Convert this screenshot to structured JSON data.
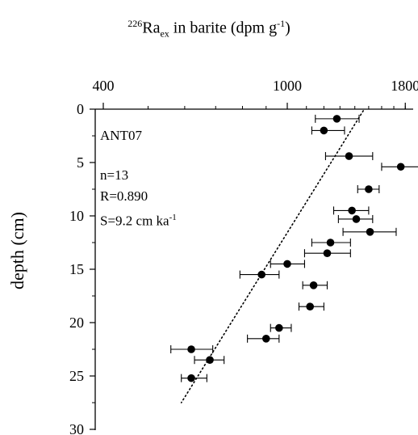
{
  "title": {
    "iso": "226",
    "symbol": "Ra",
    "sub": "ex",
    "rest": " in barite (dpm g",
    "exp": "-1",
    "close": ")"
  },
  "annotations": {
    "site": "ANT07",
    "n": "n=13",
    "r": "R=0.890",
    "s_main": "S=9.2 cm ka",
    "s_exp": "-1"
  },
  "chart_data": {
    "type": "scatter",
    "xlabel": "226Ra_ex in barite (dpm g-1)",
    "ylabel": "depth (cm)",
    "x_scale": "log",
    "xlim": [
      400,
      1900
    ],
    "ylim": [
      0,
      30
    ],
    "y_inverted": true,
    "x_ticks": [
      400,
      1000,
      1800
    ],
    "y_ticks": [
      0,
      5,
      10,
      15,
      20,
      25,
      30
    ],
    "points": [
      {
        "depth": 0.9,
        "value": 1280,
        "xerr_low": 1150,
        "xerr_high": 1430
      },
      {
        "depth": 2.0,
        "value": 1200,
        "xerr_low": 1130,
        "xerr_high": 1330
      },
      {
        "depth": 4.4,
        "value": 1360,
        "xerr_low": 1210,
        "xerr_high": 1530
      },
      {
        "depth": 5.4,
        "value": 1760,
        "xerr_low": 1600,
        "xerr_high": 1940
      },
      {
        "depth": 7.5,
        "value": 1500,
        "xerr_low": 1420,
        "xerr_high": 1580
      },
      {
        "depth": 9.5,
        "value": 1380,
        "xerr_low": 1260,
        "xerr_high": 1500
      },
      {
        "depth": 10.3,
        "value": 1410,
        "xerr_low": 1290,
        "xerr_high": 1530
      },
      {
        "depth": 11.5,
        "value": 1510,
        "xerr_low": 1320,
        "xerr_high": 1720
      },
      {
        "depth": 12.5,
        "value": 1240,
        "xerr_low": 1130,
        "xerr_high": 1370
      },
      {
        "depth": 13.5,
        "value": 1220,
        "xerr_low": 1090,
        "xerr_high": 1370
      },
      {
        "depth": 14.5,
        "value": 1000,
        "xerr_low": 920,
        "xerr_high": 1090
      },
      {
        "depth": 15.5,
        "value": 880,
        "xerr_low": 790,
        "xerr_high": 960
      },
      {
        "depth": 16.5,
        "value": 1140,
        "xerr_low": 1080,
        "xerr_high": 1220
      },
      {
        "depth": 18.5,
        "value": 1120,
        "xerr_low": 1060,
        "xerr_high": 1200
      },
      {
        "depth": 20.5,
        "value": 960,
        "xerr_low": 920,
        "xerr_high": 1020
      },
      {
        "depth": 21.5,
        "value": 900,
        "xerr_low": 820,
        "xerr_high": 960
      },
      {
        "depth": 22.5,
        "value": 620,
        "xerr_low": 560,
        "xerr_high": 690
      },
      {
        "depth": 23.5,
        "value": 680,
        "xerr_low": 630,
        "xerr_high": 730
      },
      {
        "depth": 25.2,
        "value": 620,
        "xerr_low": 590,
        "xerr_high": 670
      }
    ],
    "fit_line": {
      "x": [
        1460,
        590
      ],
      "depth": [
        0,
        27.5
      ]
    },
    "grid": false,
    "legend": "none"
  }
}
